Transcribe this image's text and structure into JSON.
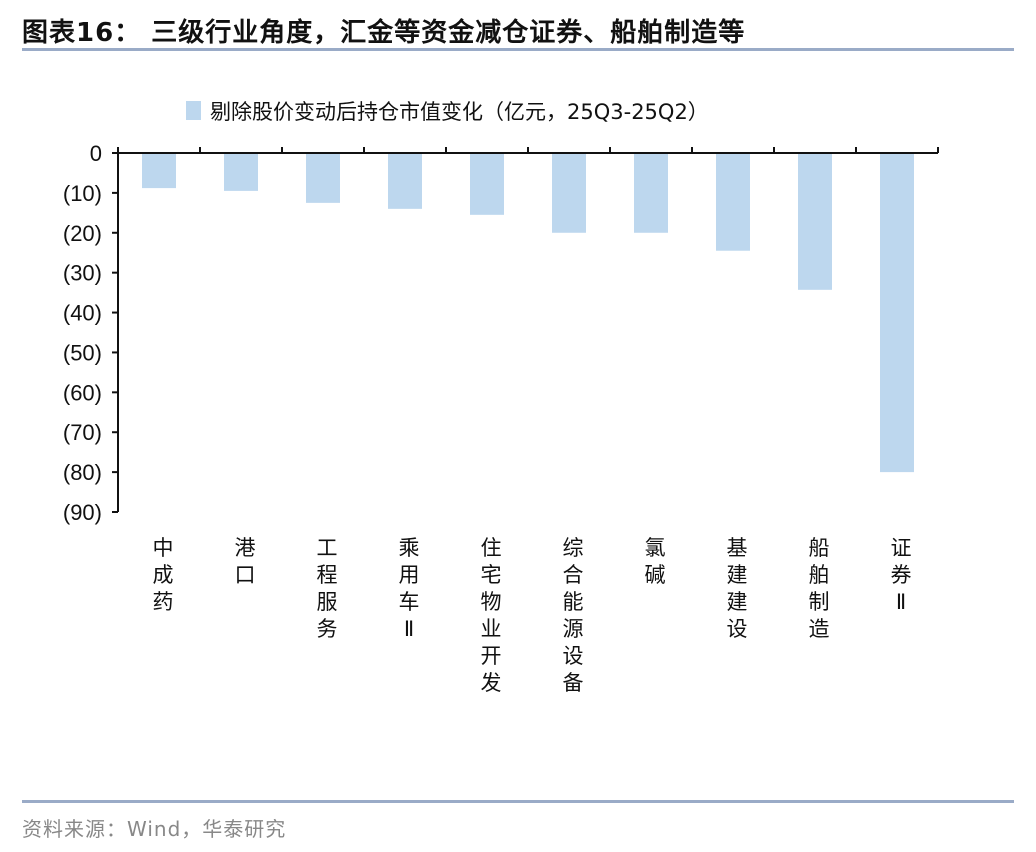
{
  "header": {
    "title": "图表16：  三级行业角度，汇金等资金减仓证券、船舶制造等"
  },
  "footer": {
    "source": "资料来源：Wind，华泰研究"
  },
  "colors": {
    "bar": "#bdd7ee",
    "rule": "#9aabc7"
  },
  "chart_data": {
    "type": "bar",
    "title": "",
    "legend": [
      "剔除股价变动后持仓市值变化（亿元，25Q3-25Q2）"
    ],
    "legend_position": "top-center",
    "categories": [
      "中成药",
      "港口",
      "工程服务",
      "乘用车Ⅱ",
      "住宅物业开发",
      "综合能源设备",
      "氯碱",
      "基建建设",
      "船舶制造",
      "证券Ⅱ"
    ],
    "values": [
      -8.8,
      -9.5,
      -12.5,
      -14,
      -15.5,
      -20,
      -20,
      -24.5,
      -34.3,
      -80
    ],
    "ylim": [
      -90,
      0
    ],
    "yticks": [
      0,
      -10,
      -20,
      -30,
      -40,
      -50,
      -60,
      -70,
      -80,
      -90
    ],
    "ytick_labels": [
      "0",
      "(10)",
      "(20)",
      "(30)",
      "(40)",
      "(50)",
      "(60)",
      "(70)",
      "(80)",
      "(90)"
    ],
    "xlabel": "",
    "ylabel": "",
    "grid": false
  }
}
